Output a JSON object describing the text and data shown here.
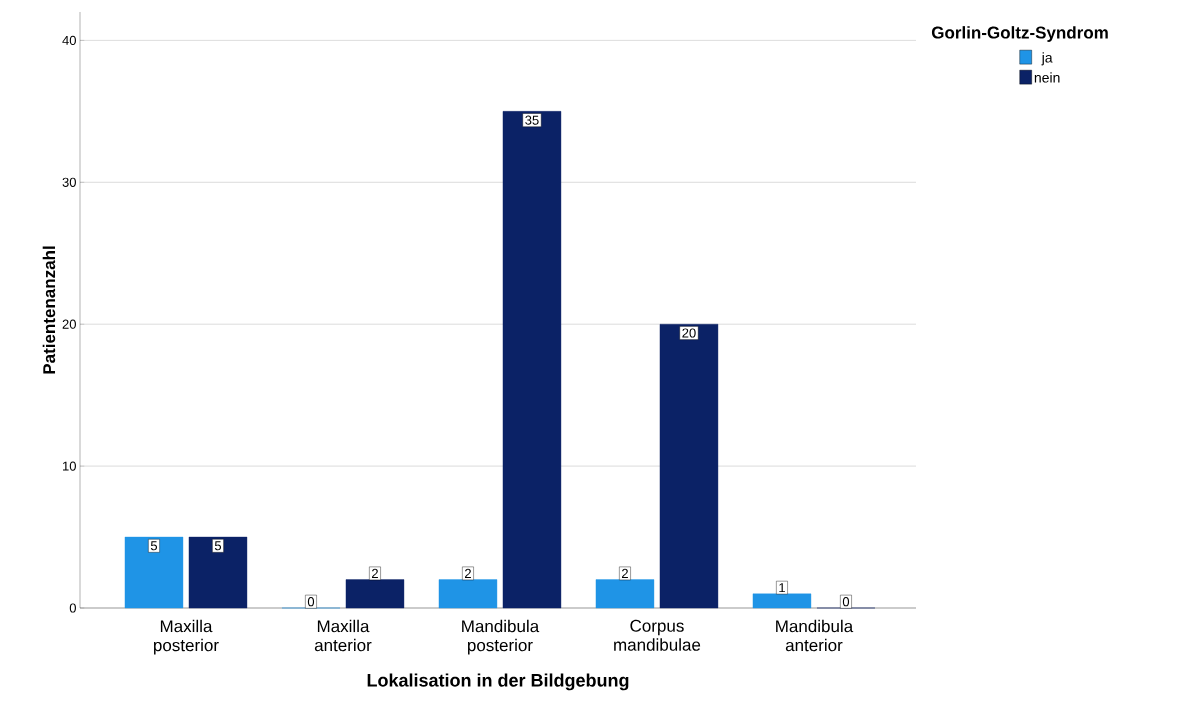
{
  "chart_data": {
    "type": "bar",
    "xlabel": "Lokalisation in der Bildgebung",
    "ylabel": "Patientenanzahl",
    "legend_title": "Gorlin-Goltz-Syndrom",
    "categories": [
      "Maxilla posterior",
      "Maxilla anterior",
      "Mandibula posterior",
      "Corpus mandibulae",
      "Mandibula anterior"
    ],
    "series": [
      {
        "name": "ja",
        "color": "#1f94e6",
        "values": [
          5,
          0,
          2,
          2,
          1
        ]
      },
      {
        "name": "nein",
        "color": "#0b2266",
        "values": [
          5,
          2,
          35,
          20,
          0
        ]
      }
    ],
    "ylim": [
      0,
      42
    ],
    "yticks": [
      0,
      10,
      20,
      30,
      40
    ],
    "grid": "y",
    "legend": "top right",
    "data_labels": true
  }
}
